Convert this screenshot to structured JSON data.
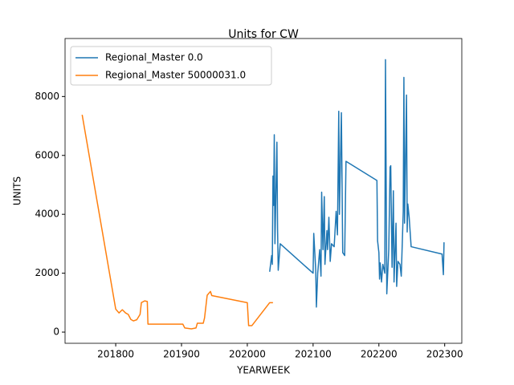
{
  "chart_data": {
    "type": "line",
    "title": "Units for CW",
    "x_label": "YEARWEEK",
    "y_label": "UNITS",
    "xlim": [
      201723,
      202326
    ],
    "ylim": [
      -380,
      9970
    ],
    "xticks": [
      201800,
      201900,
      202000,
      202100,
      202200,
      202300
    ],
    "yticks": [
      0,
      2000,
      4000,
      6000,
      8000
    ],
    "legend": "upper left",
    "grid": false,
    "series": [
      {
        "name": "Regional_Master 0.0",
        "color": "#1f77b4",
        "x": [
          202034,
          202037,
          202038,
          202039,
          202040,
          202041,
          202042,
          202045,
          202046,
          202047,
          202050,
          202100,
          202101,
          202104,
          202105,
          202107,
          202110,
          202112,
          202113,
          202115,
          202117,
          202118,
          202121,
          202122,
          202124,
          202126,
          202128,
          202132,
          202135,
          202137,
          202139,
          202140,
          202143,
          202145,
          202148,
          202150,
          202197,
          202198,
          202200,
          202201,
          202202,
          202204,
          202206,
          202209,
          202210,
          202212,
          202215,
          202217,
          202218,
          202220,
          202222,
          202223,
          202226,
          202227,
          202229,
          202232,
          202234,
          202237,
          202238,
          202239,
          202242,
          202243,
          202244,
          202246,
          202249,
          202296,
          202298,
          202299
        ],
        "values": [
          2050,
          2600,
          2300,
          5300,
          4300,
          6700,
          3000,
          6450,
          3500,
          2100,
          3000,
          2000,
          3350,
          2100,
          850,
          2000,
          2800,
          1900,
          4750,
          2800,
          4600,
          2300,
          3450,
          2800,
          3900,
          2400,
          3000,
          2900,
          4100,
          3300,
          7500,
          4000,
          7450,
          2700,
          2600,
          5800,
          5150,
          3100,
          2700,
          1800,
          2350,
          1700,
          2300,
          2000,
          9250,
          1300,
          2800,
          5600,
          5650,
          2200,
          4800,
          1700,
          3700,
          1550,
          2400,
          2300,
          1900,
          4100,
          8650,
          3700,
          8050,
          3400,
          4350,
          3900,
          2900,
          2650,
          1950,
          3050
        ]
      },
      {
        "name": "Regional_Master 50000031.0",
        "color": "#ff7f0e",
        "x": [
          201749,
          201800,
          201805,
          201810,
          201815,
          201819,
          201823,
          201827,
          201832,
          201837,
          201839,
          201844,
          201848,
          201849,
          201902,
          201905,
          201915,
          201922,
          201924,
          201933,
          201935,
          201939,
          201944,
          201946,
          202000,
          202002,
          202007,
          202034,
          202039
        ],
        "values": [
          7380,
          780,
          650,
          760,
          650,
          600,
          430,
          380,
          420,
          600,
          1000,
          1060,
          1040,
          270,
          270,
          140,
          110,
          140,
          300,
          300,
          480,
          1250,
          1380,
          1240,
          1000,
          220,
          220,
          1000,
          1000
        ]
      }
    ]
  }
}
